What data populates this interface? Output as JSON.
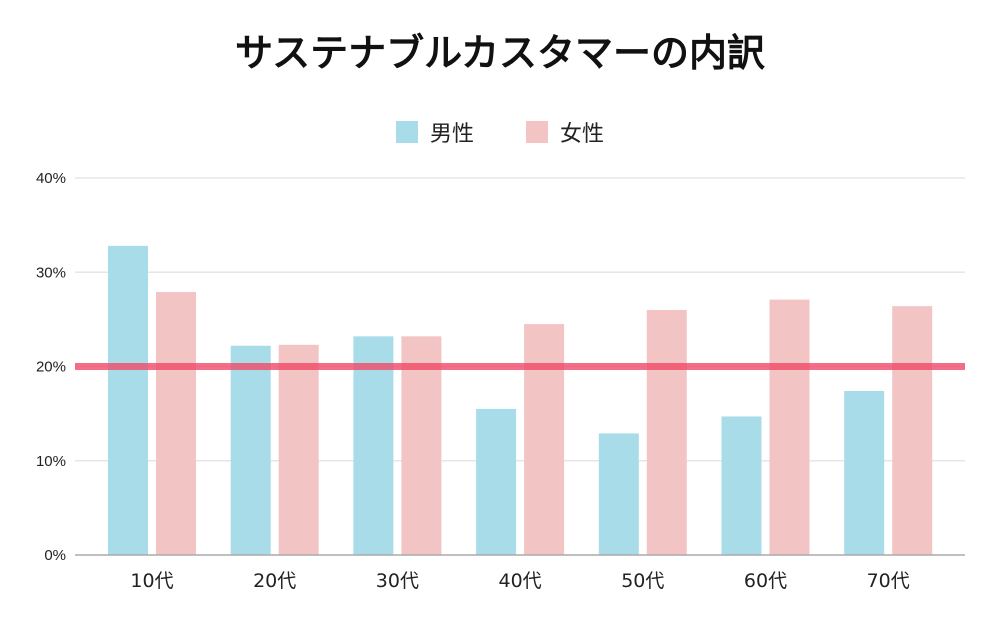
{
  "chart_data": {
    "type": "bar",
    "title": "サステナブルカスタマーの内訳",
    "categories": [
      "10代",
      "20代",
      "30代",
      "40代",
      "50代",
      "60代",
      "70代"
    ],
    "series": [
      {
        "name": "男性",
        "color": "#a8dce8",
        "values": [
          32.8,
          22.2,
          23.2,
          15.5,
          12.9,
          14.7,
          17.4
        ]
      },
      {
        "name": "女性",
        "color": "#f2c4c4",
        "values": [
          27.9,
          22.3,
          23.2,
          24.5,
          26.0,
          27.1,
          26.4
        ]
      }
    ],
    "ylim": [
      0,
      40
    ],
    "yticks": [
      "0%",
      "10%",
      "20%",
      "30%",
      "40%"
    ],
    "ytick_values": [
      0,
      10,
      20,
      30,
      40
    ],
    "reference_line": {
      "value": 20,
      "color": "#f04a68"
    },
    "grid": true,
    "legend_position": "top"
  }
}
